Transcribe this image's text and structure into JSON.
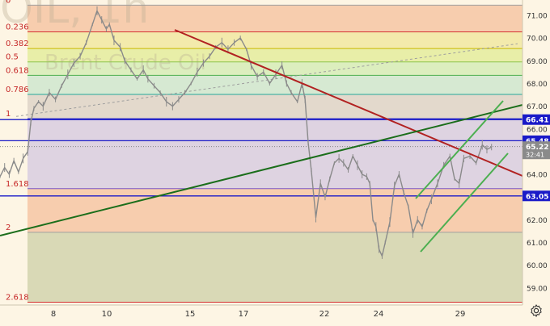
{
  "watermark": "OIL, 1h",
  "watermark_sub": "Brent Crude Oil",
  "chart_data": {
    "type": "line",
    "title": "",
    "xlabel": "",
    "ylabel": "",
    "ylim": [
      58.0,
      71.5
    ],
    "x_tick_labels": [
      "8",
      "10",
      "15",
      "17",
      "22",
      "24",
      "29"
    ],
    "y_tick_labels": [
      "59.00",
      "60.00",
      "61.00",
      "62.00",
      "63.00",
      "64.00",
      "65.00",
      "66.00",
      "67.00",
      "68.00",
      "69.00",
      "70.00",
      "71.00"
    ],
    "y_ticks": [
      59,
      60,
      61,
      62,
      63,
      64,
      65,
      66,
      67,
      68,
      69,
      70,
      71
    ],
    "fib_levels": [
      {
        "label": "0",
        "price": 71.45
      },
      {
        "label": "0.236",
        "price": 70.27
      },
      {
        "label": "0.382",
        "price": 69.54
      },
      {
        "label": "0.5",
        "price": 68.95
      },
      {
        "label": "0.618",
        "price": 68.36
      },
      {
        "label": "0.786",
        "price": 67.52
      },
      {
        "label": "1",
        "price": 66.45
      },
      {
        "label": "1.618",
        "price": 63.37
      },
      {
        "label": "2",
        "price": 61.45
      },
      {
        "label": "2.618",
        "price": 58.37
      }
    ],
    "horizontal_lines": [
      {
        "label": "66.41",
        "price": 66.41,
        "color": "#1a1ac8"
      },
      {
        "label": "65.48",
        "price": 65.48,
        "color": "#1a1ac8"
      },
      {
        "label": "63.05",
        "price": 63.05,
        "color": "#1a1ac8"
      }
    ],
    "current_price": {
      "label": "65.22",
      "price": 65.22,
      "countdown": "32:41"
    },
    "series": [
      {
        "values": [
          [
            0,
            63.9
          ],
          [
            0.3,
            64.3
          ],
          [
            0.6,
            64.0
          ],
          [
            0.9,
            64.6
          ],
          [
            1.2,
            64.1
          ],
          [
            1.5,
            64.7
          ],
          [
            1.8,
            65.0
          ],
          [
            2.0,
            66.3
          ],
          [
            2.2,
            66.9
          ],
          [
            2.5,
            67.2
          ],
          [
            2.8,
            67.0
          ],
          [
            3.2,
            67.6
          ],
          [
            3.6,
            67.3
          ],
          [
            4.0,
            67.9
          ],
          [
            4.4,
            68.4
          ],
          [
            4.8,
            68.9
          ],
          [
            5.2,
            69.2
          ],
          [
            5.6,
            69.8
          ],
          [
            6.0,
            70.6
          ],
          [
            6.3,
            71.2
          ],
          [
            6.6,
            70.8
          ],
          [
            6.9,
            70.4
          ],
          [
            7.1,
            70.6
          ],
          [
            7.4,
            69.9
          ],
          [
            7.8,
            69.6
          ],
          [
            8.1,
            69.0
          ],
          [
            8.5,
            68.6
          ],
          [
            8.9,
            68.2
          ],
          [
            9.3,
            68.6
          ],
          [
            9.6,
            68.2
          ],
          [
            10.0,
            67.9
          ],
          [
            10.4,
            67.6
          ],
          [
            10.8,
            67.2
          ],
          [
            11.2,
            67.0
          ],
          [
            11.6,
            67.3
          ],
          [
            12.0,
            67.6
          ],
          [
            12.4,
            68.0
          ],
          [
            12.8,
            68.5
          ],
          [
            13.2,
            68.9
          ],
          [
            13.6,
            69.2
          ],
          [
            14.0,
            69.6
          ],
          [
            14.4,
            69.8
          ],
          [
            14.8,
            69.5
          ],
          [
            15.2,
            69.8
          ],
          [
            15.6,
            70.0
          ],
          [
            16.0,
            69.5
          ],
          [
            16.3,
            68.8
          ],
          [
            16.7,
            68.3
          ],
          [
            17.1,
            68.5
          ],
          [
            17.5,
            68.0
          ],
          [
            17.9,
            68.4
          ],
          [
            18.3,
            68.8
          ],
          [
            18.6,
            68.0
          ],
          [
            18.9,
            67.6
          ],
          [
            19.3,
            67.2
          ],
          [
            19.6,
            68.0
          ],
          [
            19.8,
            67.3
          ],
          [
            20.0,
            65.4
          ],
          [
            20.2,
            64.2
          ],
          [
            20.5,
            62.1
          ],
          [
            20.8,
            63.6
          ],
          [
            21.1,
            63.0
          ],
          [
            21.4,
            63.8
          ],
          [
            21.7,
            64.5
          ],
          [
            22.0,
            64.7
          ],
          [
            22.3,
            64.5
          ],
          [
            22.6,
            64.2
          ],
          [
            22.9,
            64.8
          ],
          [
            23.2,
            64.4
          ],
          [
            23.5,
            64.0
          ],
          [
            23.8,
            63.9
          ],
          [
            24.0,
            63.6
          ],
          [
            24.2,
            62.0
          ],
          [
            24.4,
            61.7
          ],
          [
            24.6,
            60.7
          ],
          [
            24.8,
            60.4
          ],
          [
            25.0,
            61.0
          ],
          [
            25.3,
            61.9
          ],
          [
            25.6,
            63.5
          ],
          [
            25.9,
            64.0
          ],
          [
            26.2,
            63.2
          ],
          [
            26.5,
            62.6
          ],
          [
            26.8,
            61.4
          ],
          [
            27.1,
            62.0
          ],
          [
            27.4,
            61.7
          ],
          [
            27.7,
            62.4
          ],
          [
            28.0,
            62.9
          ],
          [
            28.4,
            63.6
          ],
          [
            28.8,
            64.4
          ],
          [
            29.2,
            64.8
          ],
          [
            29.5,
            63.8
          ],
          [
            29.8,
            63.6
          ],
          [
            30.1,
            64.7
          ],
          [
            30.5,
            64.8
          ],
          [
            30.9,
            64.5
          ],
          [
            31.3,
            65.3
          ],
          [
            31.6,
            65.1
          ],
          [
            31.9,
            65.2
          ]
        ],
        "color": "#8a8a8a"
      }
    ],
    "annotations": [
      "trend_lines",
      "fibonacci_retracement",
      "channel"
    ]
  },
  "icons": {
    "settings": "gear-icon"
  },
  "colors": {
    "background": "#fdf5e4",
    "blue_lines": "#1a1ac8",
    "price_label_bg": "#1a1ac8",
    "current_price_bg": "#8a8a8a",
    "downtrend": "#b22222",
    "uptrend": "#2e7d32",
    "channel": "#4caf50"
  }
}
